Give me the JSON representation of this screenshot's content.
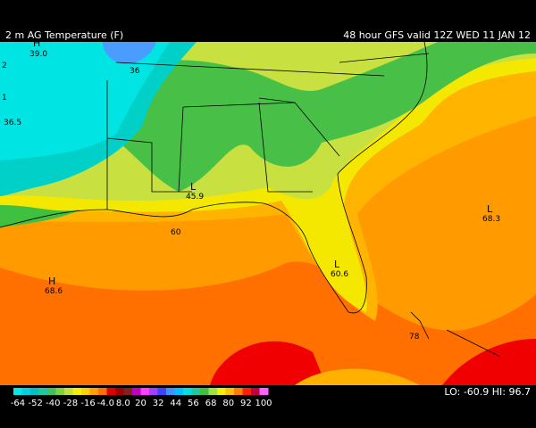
{
  "header": {
    "title": "2 m AG Temperature (F)",
    "run": "48 hour GFS valid 12Z WED 11 JAN 12"
  },
  "map_labels": [
    "H",
    "39.0",
    "36",
    "2",
    "1",
    "36.5",
    "L",
    "45.9",
    "60",
    "L",
    "68.3",
    "H",
    "68.6",
    "L",
    "60.6",
    "78"
  ],
  "colorbar": {
    "colors": [
      "#00e8e8",
      "#00d0e0",
      "#00c0c0",
      "#20c8a0",
      "#40c060",
      "#80d040",
      "#c0e040",
      "#f0f000",
      "#ffd000",
      "#ffa000",
      "#ff7000",
      "#e00000",
      "#a00000",
      "#802020",
      "#c000c0",
      "#ff40ff",
      "#a040ff",
      "#4040ff",
      "#4090ff",
      "#00c0ff",
      "#00e0e0",
      "#20c8a0",
      "#40c040",
      "#a0e040",
      "#f0f000",
      "#ffc000",
      "#ff8000",
      "#ff2000",
      "#c00040",
      "#ff60ff"
    ],
    "labels": [
      "-64",
      "-52",
      "-40",
      "-28",
      "-16",
      "-4.0",
      "8.0",
      "20",
      "32",
      "44",
      "56",
      "68",
      "80",
      "92",
      "100"
    ]
  },
  "extremes": "LO: -60.9  HI: 96.7"
}
